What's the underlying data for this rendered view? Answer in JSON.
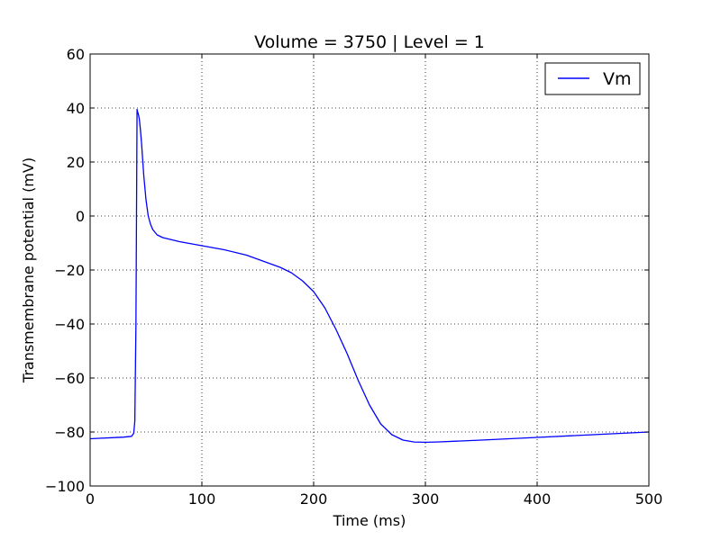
{
  "chart_data": {
    "type": "line",
    "title": "Volume = 3750 | Level = 1",
    "xlabel": "Time (ms)",
    "ylabel": "Transmembrane potential (mV)",
    "xlim": [
      0,
      500
    ],
    "ylim": [
      -100,
      60
    ],
    "xticks": [
      0,
      100,
      200,
      300,
      400,
      500
    ],
    "xtick_labels": [
      "0",
      "100",
      "200",
      "300",
      "400",
      "500"
    ],
    "yticks": [
      -100,
      -80,
      -60,
      -40,
      -20,
      0,
      20,
      40,
      60
    ],
    "ytick_labels": [
      "−100",
      "−80",
      "−60",
      "−40",
      "−20",
      "0",
      "20",
      "40",
      "60"
    ],
    "grid": true,
    "legend_position": "top-right",
    "series": [
      {
        "name": "Vm",
        "color": "#0000ff",
        "x": [
          0,
          10,
          20,
          30,
          37,
          39,
          40,
          41,
          41.5,
          42,
          42.5,
          43,
          44,
          45,
          46,
          47,
          48,
          50,
          52,
          54,
          56,
          58,
          60,
          65,
          70,
          80,
          100,
          120,
          140,
          160,
          170,
          180,
          190,
          200,
          210,
          220,
          230,
          240,
          250,
          260,
          270,
          280,
          290,
          300,
          310,
          350,
          400,
          450,
          500
        ],
        "y": [
          -82.5,
          -82.3,
          -82.1,
          -81.9,
          -81.6,
          -80.5,
          -76,
          -40,
          0,
          39.5,
          38.5,
          38,
          36,
          32,
          27,
          21,
          15,
          6,
          0,
          -3,
          -5,
          -6,
          -7,
          -8,
          -8.5,
          -9.5,
          -11,
          -12.5,
          -14.5,
          -17.5,
          -19,
          -21,
          -24,
          -28,
          -34,
          -42,
          -51,
          -61,
          -70,
          -77,
          -81,
          -83,
          -83.7,
          -83.8,
          -83.7,
          -83,
          -82,
          -81,
          -80
        ]
      }
    ]
  }
}
